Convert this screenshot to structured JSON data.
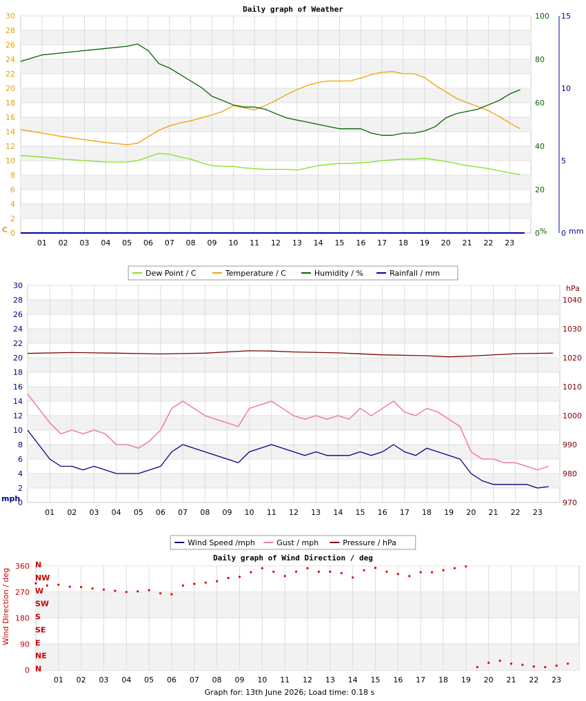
{
  "footer_text": "Graph for: 13th June 2026; Load time: 0.18 s",
  "chart_data": [
    {
      "type": "line",
      "title": "Daily graph of Weather",
      "x_ticks": [
        "01",
        "02",
        "03",
        "04",
        "05",
        "06",
        "07",
        "08",
        "09",
        "10",
        "11",
        "12",
        "13",
        "14",
        "15",
        "16",
        "17",
        "18",
        "19",
        "20",
        "21",
        "22",
        "23"
      ],
      "xlim": [
        0,
        24
      ],
      "axes": {
        "temp": {
          "label": "C",
          "range": [
            0,
            30
          ],
          "ticks": [
            0,
            2,
            4,
            6,
            8,
            10,
            12,
            14,
            16,
            18,
            20,
            22,
            24,
            26,
            28,
            30
          ],
          "color": "#e8a000"
        },
        "humidity": {
          "label": "%",
          "range": [
            0,
            100
          ],
          "ticks": [
            0,
            20,
            40,
            60,
            80,
            100
          ],
          "color": "#006400"
        },
        "rain": {
          "label": "mm",
          "range": [
            0,
            15
          ],
          "ticks": [
            0,
            5,
            10,
            15
          ],
          "color": "#0000a0"
        }
      },
      "legend": [
        "Dew Point / C",
        "Temperature / C",
        "Humidity / %",
        "Rainfall / mm"
      ],
      "series": [
        {
          "name": "Dew Point / C",
          "axis": "temp",
          "color": "#80e020",
          "x": [
            0,
            1,
            2,
            3,
            4,
            5,
            5.5,
            6,
            6.5,
            7,
            7.5,
            8,
            8.5,
            9,
            9.5,
            10,
            10.5,
            11,
            11.5,
            12,
            12.5,
            13,
            13.5,
            14,
            14.5,
            15,
            15.5,
            16,
            16.5,
            17,
            17.5,
            18,
            18.5,
            19,
            19.5,
            20,
            20.5,
            21,
            21.5,
            22,
            22.5,
            23,
            23.5
          ],
          "values": [
            10.7,
            10.5,
            10.2,
            10,
            9.8,
            9.8,
            10,
            10.5,
            11,
            10.9,
            10.5,
            10.2,
            9.7,
            9.3,
            9.2,
            9.2,
            9,
            8.9,
            8.8,
            8.8,
            8.8,
            8.7,
            9,
            9.3,
            9.5,
            9.6,
            9.6,
            9.7,
            9.8,
            10,
            10.1,
            10.2,
            10.2,
            10.3,
            10.1,
            9.9,
            9.6,
            9.3,
            9.1,
            8.9,
            8.6,
            8.3,
            8.1
          ]
        },
        {
          "name": "Temperature / C",
          "axis": "temp",
          "color": "#f0a000",
          "x": [
            0,
            1,
            2,
            3,
            4,
            5,
            5.5,
            6,
            6.5,
            7,
            7.5,
            8,
            8.5,
            9,
            9.5,
            10,
            10.5,
            11,
            11.5,
            12,
            12.5,
            13,
            13.5,
            14,
            14.5,
            15,
            15.5,
            16,
            16.5,
            17,
            17.5,
            18,
            18.5,
            19,
            19.5,
            20,
            20.5,
            21,
            21.5,
            22,
            22.5,
            23,
            23.5
          ],
          "values": [
            14.3,
            13.8,
            13.3,
            12.9,
            12.5,
            12.2,
            12.4,
            13.3,
            14.2,
            14.8,
            15.2,
            15.5,
            15.9,
            16.3,
            16.8,
            17.6,
            17.3,
            17.0,
            17.6,
            18.3,
            19.1,
            19.8,
            20.4,
            20.8,
            21.0,
            21.0,
            21.0,
            21.4,
            21.9,
            22.2,
            22.3,
            22.0,
            22.0,
            21.5,
            20.4,
            19.5,
            18.6,
            18.0,
            17.5,
            16.9,
            16.1,
            15.2,
            14.4
          ]
        },
        {
          "name": "Humidity / %",
          "axis": "humidity",
          "color": "#006400",
          "x": [
            0,
            1,
            2,
            3,
            4,
            5,
            5.5,
            6,
            6.5,
            7,
            7.5,
            8,
            8.5,
            9,
            9.5,
            10,
            10.5,
            11,
            11.5,
            12,
            12.5,
            13,
            13.5,
            14,
            14.5,
            15,
            15.5,
            16,
            16.5,
            17,
            17.5,
            18,
            18.5,
            19,
            19.5,
            20,
            20.5,
            21,
            21.5,
            22,
            22.5,
            23,
            23.5
          ],
          "values": [
            79,
            82,
            83,
            84,
            85,
            86,
            87,
            84,
            78,
            76,
            73,
            70,
            67,
            63,
            61,
            59,
            58,
            58,
            57,
            55,
            53,
            52,
            51,
            50,
            49,
            48,
            48,
            48,
            46,
            45,
            45,
            46,
            46,
            47,
            49,
            53,
            55,
            56,
            57,
            59,
            61,
            64,
            66
          ]
        },
        {
          "name": "Rainfall / mm",
          "axis": "rain",
          "color": "#0000a0",
          "x": [
            0,
            23.7
          ],
          "values": [
            0,
            0
          ]
        }
      ]
    },
    {
      "type": "line",
      "title": "",
      "x_ticks": [
        "01",
        "02",
        "03",
        "04",
        "05",
        "06",
        "07",
        "08",
        "09",
        "10",
        "11",
        "12",
        "13",
        "14",
        "15",
        "16",
        "17",
        "18",
        "19",
        "20",
        "21",
        "22",
        "23"
      ],
      "xlim": [
        0,
        24
      ],
      "axes": {
        "wind": {
          "label": "mph",
          "range": [
            0,
            30
          ],
          "ticks": [
            0,
            2,
            4,
            6,
            8,
            10,
            12,
            14,
            16,
            18,
            20,
            22,
            24,
            26,
            28,
            30
          ],
          "color": "#000080"
        },
        "pressure": {
          "label": "hPa",
          "range": [
            970,
            1045
          ],
          "ticks": [
            970,
            980,
            990,
            1000,
            1010,
            1020,
            1030,
            1040
          ],
          "color": "#800000"
        }
      },
      "legend": [
        "Wind Speed /mph",
        "Gust / mph",
        "Pressure / hPa"
      ],
      "series": [
        {
          "name": "Wind Speed /mph",
          "axis": "wind",
          "color": "#000080",
          "x": [
            0,
            0.5,
            1,
            1.5,
            2,
            2.5,
            3,
            3.5,
            4,
            4.5,
            5,
            5.5,
            6,
            6.5,
            7,
            7.5,
            8,
            8.5,
            9,
            9.5,
            10,
            10.5,
            11,
            11.5,
            12,
            12.5,
            13,
            13.5,
            14,
            14.5,
            15,
            15.5,
            16,
            16.5,
            17,
            17.5,
            18,
            18.5,
            19,
            19.5,
            20,
            20.5,
            21,
            21.5,
            22,
            22.5,
            23,
            23.5
          ],
          "values": [
            10,
            8,
            6,
            5,
            5,
            4.5,
            5,
            4.5,
            4,
            4,
            4,
            4.5,
            5,
            7,
            8,
            7.5,
            7,
            6.5,
            6,
            5.5,
            7,
            7.5,
            8,
            7.5,
            7,
            6.5,
            7,
            6.5,
            6.5,
            6.5,
            7,
            6.5,
            7,
            8,
            7,
            6.5,
            7.5,
            7,
            6.5,
            6,
            4,
            3,
            2.5,
            2.5,
            2.5,
            2.5,
            2.0,
            2.2
          ]
        },
        {
          "name": "Gust / mph",
          "axis": "wind",
          "color": "#f080a0",
          "x": [
            0,
            0.5,
            1,
            1.5,
            2,
            2.5,
            3,
            3.5,
            4,
            4.5,
            5,
            5.5,
            6,
            6.5,
            7,
            7.5,
            8,
            8.5,
            9,
            9.5,
            10,
            10.5,
            11,
            11.5,
            12,
            12.5,
            13,
            13.5,
            14,
            14.5,
            15,
            15.5,
            16,
            16.5,
            17,
            17.5,
            18,
            18.5,
            19,
            19.5,
            20,
            20.5,
            21,
            21.5,
            22,
            22.5,
            23,
            23.5
          ],
          "values": [
            15,
            13,
            11,
            9.5,
            10,
            9.5,
            10,
            9.5,
            8,
            8,
            7.5,
            8.5,
            10,
            13,
            14,
            13,
            12,
            11.5,
            11,
            10.5,
            13,
            13.5,
            14,
            13,
            12,
            11.5,
            12,
            11.5,
            12,
            11.5,
            13,
            12,
            13,
            14,
            12.5,
            12,
            13,
            12.5,
            11.5,
            10.5,
            7,
            6,
            6,
            5.5,
            5.5,
            5,
            4.5,
            5
          ]
        },
        {
          "name": "Pressure / hPa",
          "axis": "pressure",
          "color": "#800000",
          "x": [
            0,
            2,
            4,
            6,
            8,
            10,
            11,
            12,
            14,
            16,
            18,
            19,
            20,
            22,
            23.7
          ],
          "values": [
            1021.5,
            1021.8,
            1021.6,
            1021.3,
            1021.6,
            1022.4,
            1022.3,
            1022.0,
            1021.7,
            1021.0,
            1020.7,
            1020.3,
            1020.6,
            1021.4,
            1021.6
          ]
        }
      ]
    },
    {
      "type": "scatter",
      "title": "Daily graph of Wind Direction / deg",
      "x_ticks": [
        "01",
        "02",
        "03",
        "04",
        "05",
        "06",
        "07",
        "08",
        "09",
        "10",
        "11",
        "12",
        "13",
        "14",
        "15",
        "16",
        "17",
        "18",
        "19",
        "20",
        "21",
        "22",
        "23"
      ],
      "xlim": [
        0,
        24
      ],
      "yaxis": {
        "label": "Wind Direction / deg",
        "range": [
          0,
          360
        ],
        "ticks": [
          0,
          90,
          180,
          270,
          360
        ],
        "color": "#cc0000"
      },
      "compass_labels": [
        "N",
        "NE",
        "E",
        "SE",
        "S",
        "SW",
        "W",
        "NW",
        "N"
      ],
      "series": [
        {
          "name": "Wind Direction",
          "color": "#dd0000",
          "x": [
            0,
            0.5,
            1,
            1.5,
            2,
            2.5,
            3,
            3.5,
            4,
            4.5,
            5,
            5.5,
            6,
            6.5,
            7,
            7.5,
            8,
            8.5,
            9,
            9.5,
            10,
            10.5,
            11,
            11.5,
            12,
            12.5,
            13,
            13.5,
            14,
            14.5,
            15,
            15.5,
            16,
            16.5,
            17,
            17.5,
            18,
            18.5,
            19,
            19.5,
            20,
            20.5,
            21,
            21.5,
            22,
            22.5,
            23,
            23.5
          ],
          "values": [
            300,
            292,
            295,
            288,
            287,
            282,
            278,
            274,
            270,
            272,
            276,
            265,
            262,
            292,
            298,
            302,
            307,
            318,
            322,
            338,
            352,
            340,
            325,
            340,
            352,
            340,
            340,
            335,
            320,
            345,
            353,
            340,
            332,
            325,
            338,
            338,
            345,
            352,
            358,
            10,
            25,
            32,
            22,
            18,
            12,
            10,
            15,
            22
          ]
        }
      ]
    }
  ]
}
